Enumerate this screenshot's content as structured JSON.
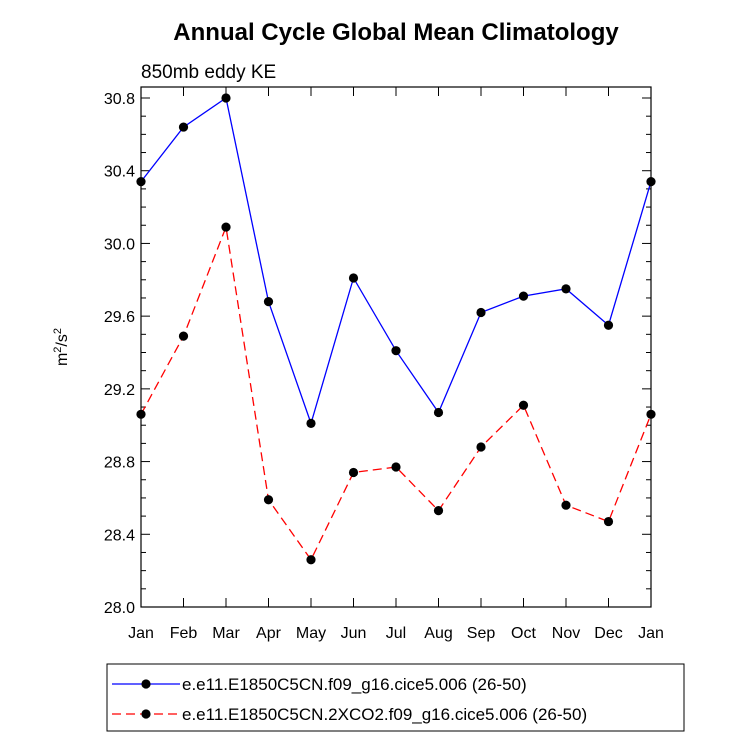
{
  "chart_data": {
    "type": "line",
    "title": "Annual Cycle Global Mean Climatology",
    "subtitle": "850mb eddy KE",
    "xlabel": "",
    "ylabel": "m²/s²",
    "ylabel_base": "m",
    "ylabel_sup1": "2",
    "ylabel_sep": "/s",
    "ylabel_sup2": "2",
    "categories": [
      "Jan",
      "Feb",
      "Mar",
      "Apr",
      "May",
      "Jun",
      "Jul",
      "Aug",
      "Sep",
      "Oct",
      "Nov",
      "Dec",
      "Jan"
    ],
    "ylim": [
      28.0,
      30.8
    ],
    "yticks": [
      28.0,
      28.4,
      28.8,
      29.2,
      29.6,
      30.0,
      30.4,
      30.8
    ],
    "ytick_labels": [
      "28.0",
      "28.4",
      "28.8",
      "29.2",
      "29.6",
      "30.0",
      "30.4",
      "30.8"
    ],
    "grid": false,
    "legend_position": "bottom",
    "series": [
      {
        "name": "e.e11.E1850C5CN.f09_g16.cice5.006 (26-50)",
        "color": "#0000ff",
        "dash": "solid",
        "marker": "filled-circle",
        "values": [
          30.34,
          30.64,
          30.8,
          29.68,
          29.01,
          29.81,
          29.41,
          29.07,
          29.62,
          29.71,
          29.75,
          29.55,
          30.34
        ]
      },
      {
        "name": "e.e11.E1850C5CN.2XCO2.f09_g16.cice5.006 (26-50)",
        "color": "#ff0000",
        "dash": "dashed",
        "marker": "filled-circle",
        "values": [
          29.06,
          29.49,
          30.09,
          28.59,
          28.26,
          28.74,
          28.77,
          28.53,
          28.88,
          29.11,
          28.56,
          28.47,
          29.06
        ]
      }
    ]
  }
}
